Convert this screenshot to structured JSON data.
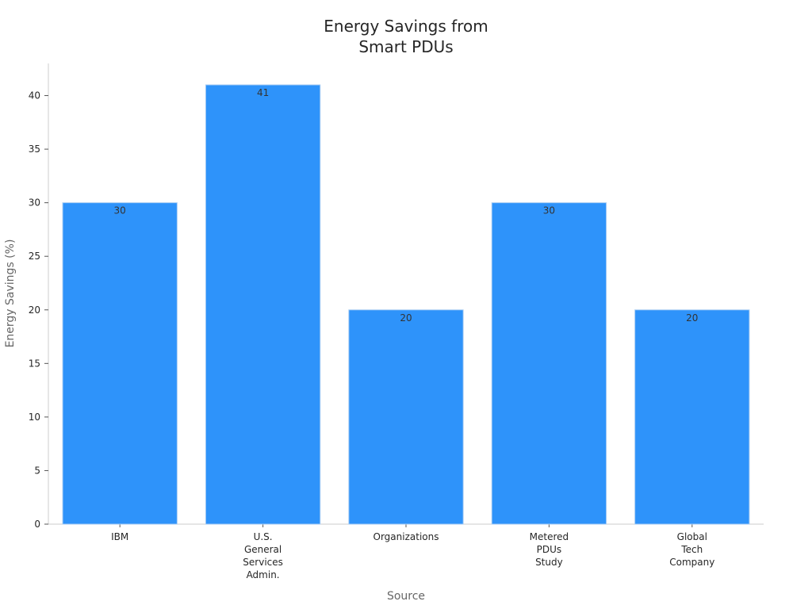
{
  "chart_data": {
    "type": "bar",
    "title": [
      "Energy Savings from",
      "Smart PDUs"
    ],
    "xlabel": "Source",
    "ylabel": "Energy Savings (%)",
    "categories": [
      [
        "IBM"
      ],
      [
        "U.S.",
        "General",
        "Services",
        "Admin."
      ],
      [
        "Organizations"
      ],
      [
        "Metered",
        "PDUs",
        "Study"
      ],
      [
        "Global",
        "Tech",
        "Company"
      ]
    ],
    "values": [
      30,
      41,
      20,
      30,
      20
    ],
    "ylim": [
      0,
      43
    ],
    "yticks": [
      0,
      5,
      10,
      15,
      20,
      25,
      30,
      35,
      40
    ],
    "colors": {
      "bar": "#2E93FA"
    },
    "grid": false,
    "legend": "none"
  }
}
